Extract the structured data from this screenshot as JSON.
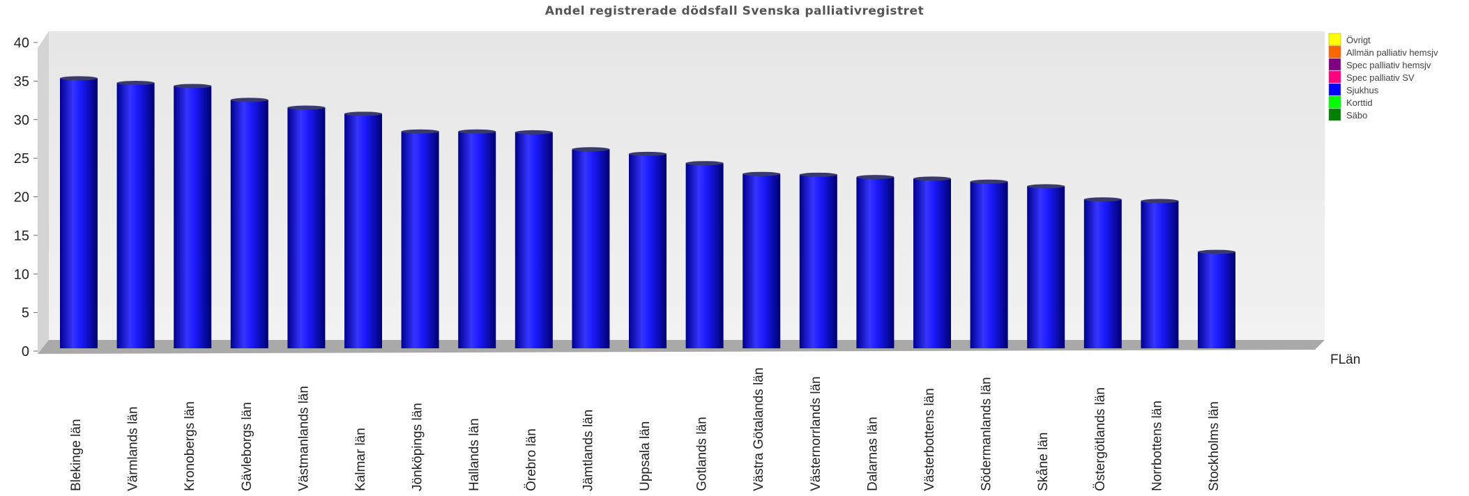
{
  "chart_data": {
    "type": "bar",
    "title": "Andel registrerade dödsfall Svenska palliativregistret",
    "xlabel": "FLän",
    "ylabel": "",
    "ylim": [
      0,
      40
    ],
    "yticks": [
      0,
      5,
      10,
      15,
      20,
      25,
      30,
      35,
      40
    ],
    "grid": false,
    "legend_position": "top-right",
    "categories": [
      "Blekinge län",
      "Värmlands län",
      "Kronobergs län",
      "Gävleborgs län",
      "Västmanlands län",
      "Kalmar län",
      "Jönköpings län",
      "Hallands län",
      "Örebro län",
      "Jämtlands län",
      "Uppsala län",
      "Gotlands län",
      "Västra Götalands län",
      "Västernorrlands län",
      "Dalarnas län",
      "Västerbottens län",
      "Södermanlands län",
      "Skåne län",
      "Östergötlands län",
      "Norrbottens län",
      "Stockholms län"
    ],
    "series": [
      {
        "name": "Sjukhus",
        "color": "#0000ff",
        "values": [
          35.0,
          34.4,
          34.0,
          32.2,
          31.2,
          30.4,
          28.1,
          28.1,
          28.0,
          25.8,
          25.2,
          24.0,
          22.6,
          22.5,
          22.2,
          22.0,
          21.6,
          21.0,
          19.3,
          19.1,
          12.5
        ]
      }
    ],
    "legend": [
      {
        "name": "Övrigt",
        "color": "#ffff00"
      },
      {
        "name": "Allmän palliativ hemsjv",
        "color": "#ff6600"
      },
      {
        "name": "Spec palliativ hemsjv",
        "color": "#800080"
      },
      {
        "name": "Spec palliativ SV",
        "color": "#ff0080"
      },
      {
        "name": "Sjukhus",
        "color": "#0000ff"
      },
      {
        "name": "Korttid",
        "color": "#00ff00"
      },
      {
        "name": "Säbo",
        "color": "#008000"
      }
    ]
  }
}
